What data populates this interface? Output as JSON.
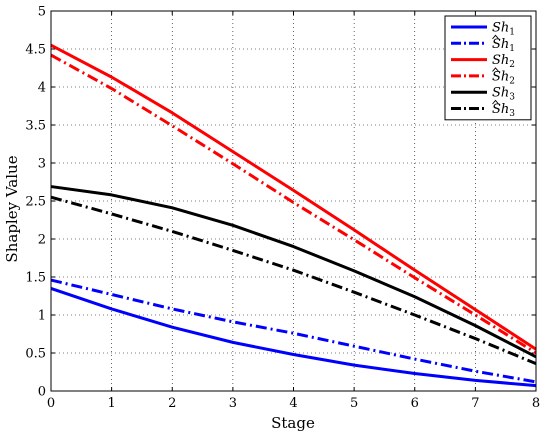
{
  "chart_data": {
    "type": "line",
    "title": "",
    "xlabel": "Stage",
    "ylabel": "Shapley Value",
    "xlim": [
      0,
      8
    ],
    "ylim": [
      0,
      5
    ],
    "xticks": [
      0,
      1,
      2,
      3,
      4,
      5,
      6,
      7,
      8
    ],
    "yticks": [
      0,
      0.5,
      1,
      1.5,
      2,
      2.5,
      3,
      3.5,
      4,
      4.5,
      5
    ],
    "grid": true,
    "grid_style": "dotted",
    "legend_position": "top-right",
    "x": [
      0,
      1,
      2,
      3,
      4,
      5,
      6,
      7,
      8
    ],
    "series": [
      {
        "name": "Sh",
        "subscript": "1",
        "hat": false,
        "color": "#0000ff",
        "dash": "solid",
        "values": [
          1.35,
          1.08,
          0.84,
          0.64,
          0.48,
          0.34,
          0.23,
          0.14,
          0.07
        ]
      },
      {
        "name": "Sh",
        "subscript": "1",
        "hat": true,
        "color": "#0000ff",
        "dash": "dashdot",
        "values": [
          1.46,
          1.27,
          1.08,
          0.91,
          0.76,
          0.59,
          0.42,
          0.26,
          0.12
        ]
      },
      {
        "name": "Sh",
        "subscript": "2",
        "hat": false,
        "color": "#ff0000",
        "dash": "solid",
        "values": [
          4.55,
          4.13,
          3.66,
          3.15,
          2.64,
          2.12,
          1.59,
          1.07,
          0.55
        ]
      },
      {
        "name": "Sh",
        "subscript": "2",
        "hat": true,
        "color": "#ff0000",
        "dash": "dashdot",
        "values": [
          4.42,
          3.98,
          3.49,
          2.99,
          2.48,
          1.99,
          1.49,
          1.0,
          0.5
        ]
      },
      {
        "name": "Sh",
        "subscript": "3",
        "hat": false,
        "color": "#000000",
        "dash": "solid",
        "values": [
          2.69,
          2.58,
          2.41,
          2.18,
          1.9,
          1.58,
          1.24,
          0.86,
          0.45
        ]
      },
      {
        "name": "Sh",
        "subscript": "3",
        "hat": true,
        "color": "#000000",
        "dash": "dashdot",
        "values": [
          2.55,
          2.33,
          2.1,
          1.85,
          1.59,
          1.3,
          1.0,
          0.69,
          0.36
        ]
      }
    ]
  }
}
